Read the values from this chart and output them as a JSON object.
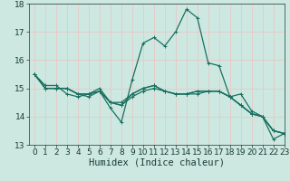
{
  "xlabel": "Humidex (Indice chaleur)",
  "ylabel": "",
  "x_min": -0.5,
  "x_max": 23,
  "y_min": 13,
  "y_max": 18,
  "background_color": "#cce8e0",
  "grid_color": "#e8c8c8",
  "line_color": "#1a7060",
  "lines": [
    [
      15.5,
      15.1,
      15.1,
      14.8,
      14.7,
      14.8,
      14.9,
      14.3,
      13.8,
      15.3,
      16.6,
      16.8,
      16.5,
      17.0,
      17.8,
      17.5,
      15.9,
      15.8,
      14.7,
      14.8,
      14.2,
      14.0,
      13.2,
      13.4
    ],
    [
      15.5,
      15.0,
      15.0,
      15.0,
      14.8,
      14.8,
      14.9,
      14.5,
      14.5,
      14.8,
      15.0,
      15.1,
      14.9,
      14.8,
      14.8,
      14.9,
      14.9,
      14.9,
      14.7,
      14.4,
      14.1,
      14.0,
      13.5,
      13.4
    ],
    [
      15.5,
      15.0,
      15.0,
      15.0,
      14.8,
      14.7,
      14.9,
      14.5,
      14.4,
      14.7,
      14.9,
      15.0,
      14.9,
      14.8,
      14.8,
      14.8,
      14.9,
      14.9,
      14.7,
      14.4,
      14.1,
      14.0,
      13.5,
      13.4
    ],
    [
      15.5,
      15.0,
      15.0,
      15.0,
      14.8,
      14.8,
      15.0,
      14.5,
      14.4,
      14.8,
      15.0,
      15.1,
      14.9,
      14.8,
      14.8,
      14.9,
      14.9,
      14.9,
      14.7,
      14.4,
      14.1,
      14.0,
      13.5,
      13.4
    ]
  ],
  "x_ticks": [
    0,
    1,
    2,
    3,
    4,
    5,
    6,
    7,
    8,
    9,
    10,
    11,
    12,
    13,
    14,
    15,
    16,
    17,
    18,
    19,
    20,
    21,
    22,
    23
  ],
  "y_ticks": [
    13,
    14,
    15,
    16,
    17,
    18
  ],
  "tick_fontsize": 6.5,
  "label_fontsize": 7.5
}
